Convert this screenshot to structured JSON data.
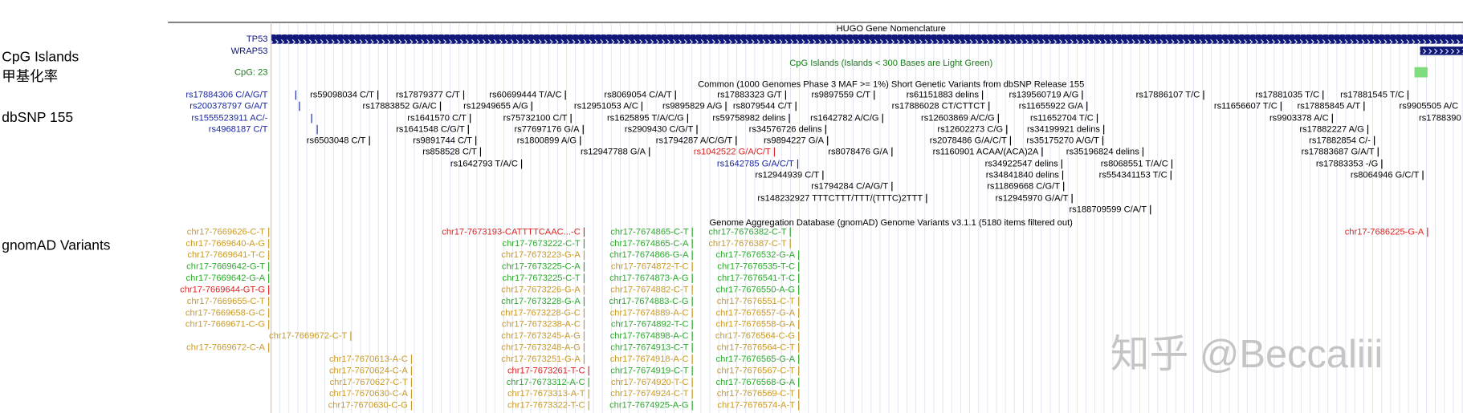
{
  "side_labels": [
    "CpG Islands",
    "甲基化率",
    "dbSNP 155",
    "gnomAD Variants"
  ],
  "tracks": {
    "hugo_title": "HUGO Gene Nomenclature",
    "gene_names": [
      "TP53",
      "WRAP53"
    ],
    "cpg_count": "CpG: 23",
    "cpg_title": "CpG Islands (Islands < 300 Bases are Light Green)",
    "dbsnp_title": "Common (1000 Genomes Phase 3 MAF >= 1%) Short Genetic Variants from dbSNP Release 155",
    "gnomad_title": "Genome Aggregation Database (gnomAD) Genome Variants v3.1.1 (5180 items filtered out)"
  },
  "dbsnp": {
    "left_labels": [
      "rs17884306 C/A/G/T",
      "rs200378797 G/A/T",
      "rs1555523911 AC/-",
      "rs4968187 C/T"
    ],
    "rows": [
      [
        "rs59098034 C/T",
        "rs17879377 C/T",
        "rs60699444 T/A/C",
        "rs8069054 C/A/T",
        "rs17883323 G/T",
        "rs9897559 C/T",
        "rs61151883 delins",
        "rs139560719 A/G",
        "rs17886107 T/C",
        "rs17881035 T/C",
        "rs17881545 T/C"
      ],
      [
        "rs17883852 G/A/C",
        "rs12949655 A/G",
        "rs12951053 A/C",
        "rs9895829 A/G",
        "rs8079544 C/T",
        "rs17886028 CT/CTTCT",
        "rs11655922 G/A",
        "rs11656607 T/C",
        "rs17885845 A/T",
        "rs9905505 A/C"
      ],
      [
        "rs1641570 C/T",
        "rs75732100 C/T",
        "rs1625895 T/A/C/G",
        "rs59758982 delins",
        "rs1642782 A/C/G",
        "rs12603869 A/C/G",
        "rs11652704 T/C",
        "rs9903378 A/C",
        "rs1788390"
      ],
      [
        "rs1641548 C/G/T",
        "rs77697176 G/A",
        "rs2909430 C/G/T",
        "rs34576726 delins",
        "rs12602273 C/G",
        "rs34199921 delins",
        "rs17882227 A/G"
      ],
      [
        "rs6503048 C/T",
        "rs9891744 C/T",
        "rs1800899 A/G",
        "rs1794287 A/C/G/T",
        "rs9894227 G/A",
        "rs2078486 G/A/C/T",
        "rs35175270 A/G/T",
        "rs17882854 C/-"
      ],
      [
        "rs858528 C/T",
        "rs12947788 G/A",
        "rs1042522 G/A/C/T",
        "rs8078476 G/A",
        "rs1160901 ACAA/(ACA)2A",
        "rs35196824 delins",
        "rs17883687 G/A/T"
      ],
      [
        "rs1642793 T/A/C",
        "rs1642785 G/A/C/T",
        "rs34922547 delins",
        "rs8068551 T/A/C",
        "rs17883353 -/G"
      ],
      [
        "rs12944939 C/T",
        "rs34841840 delins",
        "rs554341153 T/C",
        "rs8064946 G/C/T"
      ],
      [
        "rs1794284 C/A/G/T",
        "rs11869668 C/G/T"
      ],
      [
        "rs148232927 TTTCTTT/TTT/(TTTC)2TTT",
        "rs12945970 G/A/T"
      ],
      [
        "rs188709599 C/A/T"
      ]
    ]
  },
  "gnomad": {
    "groups": [
      [
        "chr17-7669626-C-T",
        "chr17-7669640-A-G",
        "chr17-7669641-T-C",
        "chr17-7669642-G-T",
        "chr17-7669642-G-A",
        "chr17-7669644-GT-G",
        "chr17-7669655-C-T",
        "chr17-7669658-G-C",
        "chr17-7669671-C-G",
        "chr17-7669672-C-T",
        "chr17-7669672-C-A"
      ],
      [
        "chr17-7670613-A-C",
        "chr17-7670624-C-A",
        "chr17-7670627-C-T",
        "chr17-7670630-C-A",
        "chr17-7670630-C-G"
      ],
      [
        "chr17-7673193-CATTTTCAAC...-C",
        "chr17-7673222-C-T",
        "chr17-7673223-G-A",
        "chr17-7673225-C-A",
        "chr17-7673225-C-T",
        "chr17-7673226-G-A",
        "chr17-7673228-G-A",
        "chr17-7673228-G-C",
        "chr17-7673238-A-C",
        "chr17-7673245-A-G",
        "chr17-7673248-A-G",
        "chr17-7673251-G-A",
        "chr17-7673261-T-C",
        "chr17-7673312-A-C",
        "chr17-7673313-A-T",
        "chr17-7673322-T-C"
      ],
      [
        "chr17-7674865-C-T",
        "chr17-7674865-C-A",
        "chr17-7674866-G-A",
        "chr17-7674872-T-C",
        "chr17-7674873-A-G",
        "chr17-7674882-C-T",
        "chr17-7674883-C-G",
        "chr17-7674889-A-C",
        "chr17-7674892-T-C",
        "chr17-7674898-A-C",
        "chr17-7674913-C-T",
        "chr17-7674918-A-C",
        "chr17-7674919-C-T",
        "chr17-7674920-T-C",
        "chr17-7674924-C-T",
        "chr17-7674925-A-G"
      ],
      [
        "chr17-7676382-C-T",
        "chr17-7676387-C-T",
        "chr17-7676532-G-A",
        "chr17-7676535-T-C",
        "chr17-7676541-T-C",
        "chr17-7676550-A-G",
        "chr17-7676551-C-T",
        "chr17-7676557-G-A",
        "chr17-7676558-G-A",
        "chr17-7676564-C-G",
        "chr17-7676564-C-T",
        "chr17-7676565-G-A",
        "chr17-7676567-C-T",
        "chr17-7676568-G-A",
        "chr17-7676569-C-T",
        "chr17-7676574-A-T"
      ],
      [
        "chr17-7686225-G-A"
      ]
    ]
  },
  "watermark": "知乎 @Beccaliii"
}
